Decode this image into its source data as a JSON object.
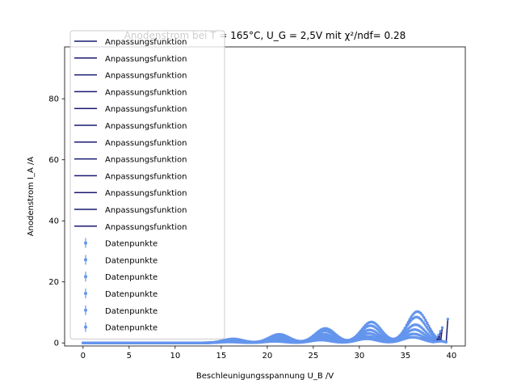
{
  "chart_data": {
    "type": "scatter",
    "title": "Anodenstrom bei T = 165°C, U_G = 2,5V mit χ²/ndf= 0.28",
    "xlabel": "Beschleunigungsspannung U_B /V",
    "ylabel": "Anodenstrom I_A /A",
    "xlim": [
      -2,
      41.5
    ],
    "ylim": [
      -1,
      97
    ],
    "xticks": [
      0,
      5,
      10,
      15,
      20,
      25,
      30,
      35,
      40
    ],
    "yticks": [
      0,
      20,
      40,
      60,
      80
    ],
    "grid": false,
    "legend_position": "upper left",
    "legend": {
      "fit_label": "Anpassungsfunktion",
      "fit_count": 12,
      "data_label": "Datenpunkte",
      "data_count": 6
    },
    "colors": {
      "fit": "#191970",
      "data": "#6495ED"
    },
    "series": [
      {
        "kind": "data",
        "x_range": [
          0,
          39.6
        ],
        "peaks": [
          [
            16.3,
            1.3
          ],
          [
            21.3,
            2.8
          ],
          [
            26.3,
            4.7
          ],
          [
            31.3,
            6.8
          ],
          [
            36.3,
            10.2
          ]
        ],
        "end_value": 7.8
      },
      {
        "kind": "data",
        "x_range": [
          0,
          39.0
        ],
        "peaks": [
          [
            16.3,
            1.0
          ],
          [
            21.2,
            2.2
          ],
          [
            26.2,
            3.9
          ],
          [
            31.2,
            5.6
          ],
          [
            36.2,
            8.4
          ]
        ],
        "end_value": 5.0
      },
      {
        "kind": "data",
        "x_range": [
          0,
          38.8
        ],
        "peaks": [
          [
            16.2,
            0.8
          ],
          [
            21.1,
            1.7
          ],
          [
            26.1,
            2.9
          ],
          [
            31.1,
            4.2
          ],
          [
            36.1,
            5.9
          ]
        ],
        "end_value": 3.8
      },
      {
        "kind": "data",
        "x_range": [
          0,
          38.6
        ],
        "peaks": [
          [
            16.1,
            0.6
          ],
          [
            21.0,
            1.2
          ],
          [
            26.0,
            2.1
          ],
          [
            31.0,
            3.1
          ],
          [
            36.0,
            4.3
          ]
        ],
        "end_value": 2.6
      },
      {
        "kind": "data",
        "x_range": [
          0,
          38.4
        ],
        "peaks": [
          [
            16.0,
            0.4
          ],
          [
            20.9,
            0.8
          ],
          [
            25.9,
            1.4
          ],
          [
            30.9,
            2.1
          ],
          [
            35.9,
            2.9
          ]
        ],
        "end_value": 1.8
      },
      {
        "kind": "data",
        "x_range": [
          0,
          38.2
        ],
        "peaks": [
          [
            15.9,
            0.3
          ],
          [
            20.8,
            0.5
          ],
          [
            25.8,
            0.9
          ],
          [
            30.8,
            1.3
          ],
          [
            35.8,
            1.8
          ]
        ],
        "end_value": 1.1
      }
    ]
  }
}
